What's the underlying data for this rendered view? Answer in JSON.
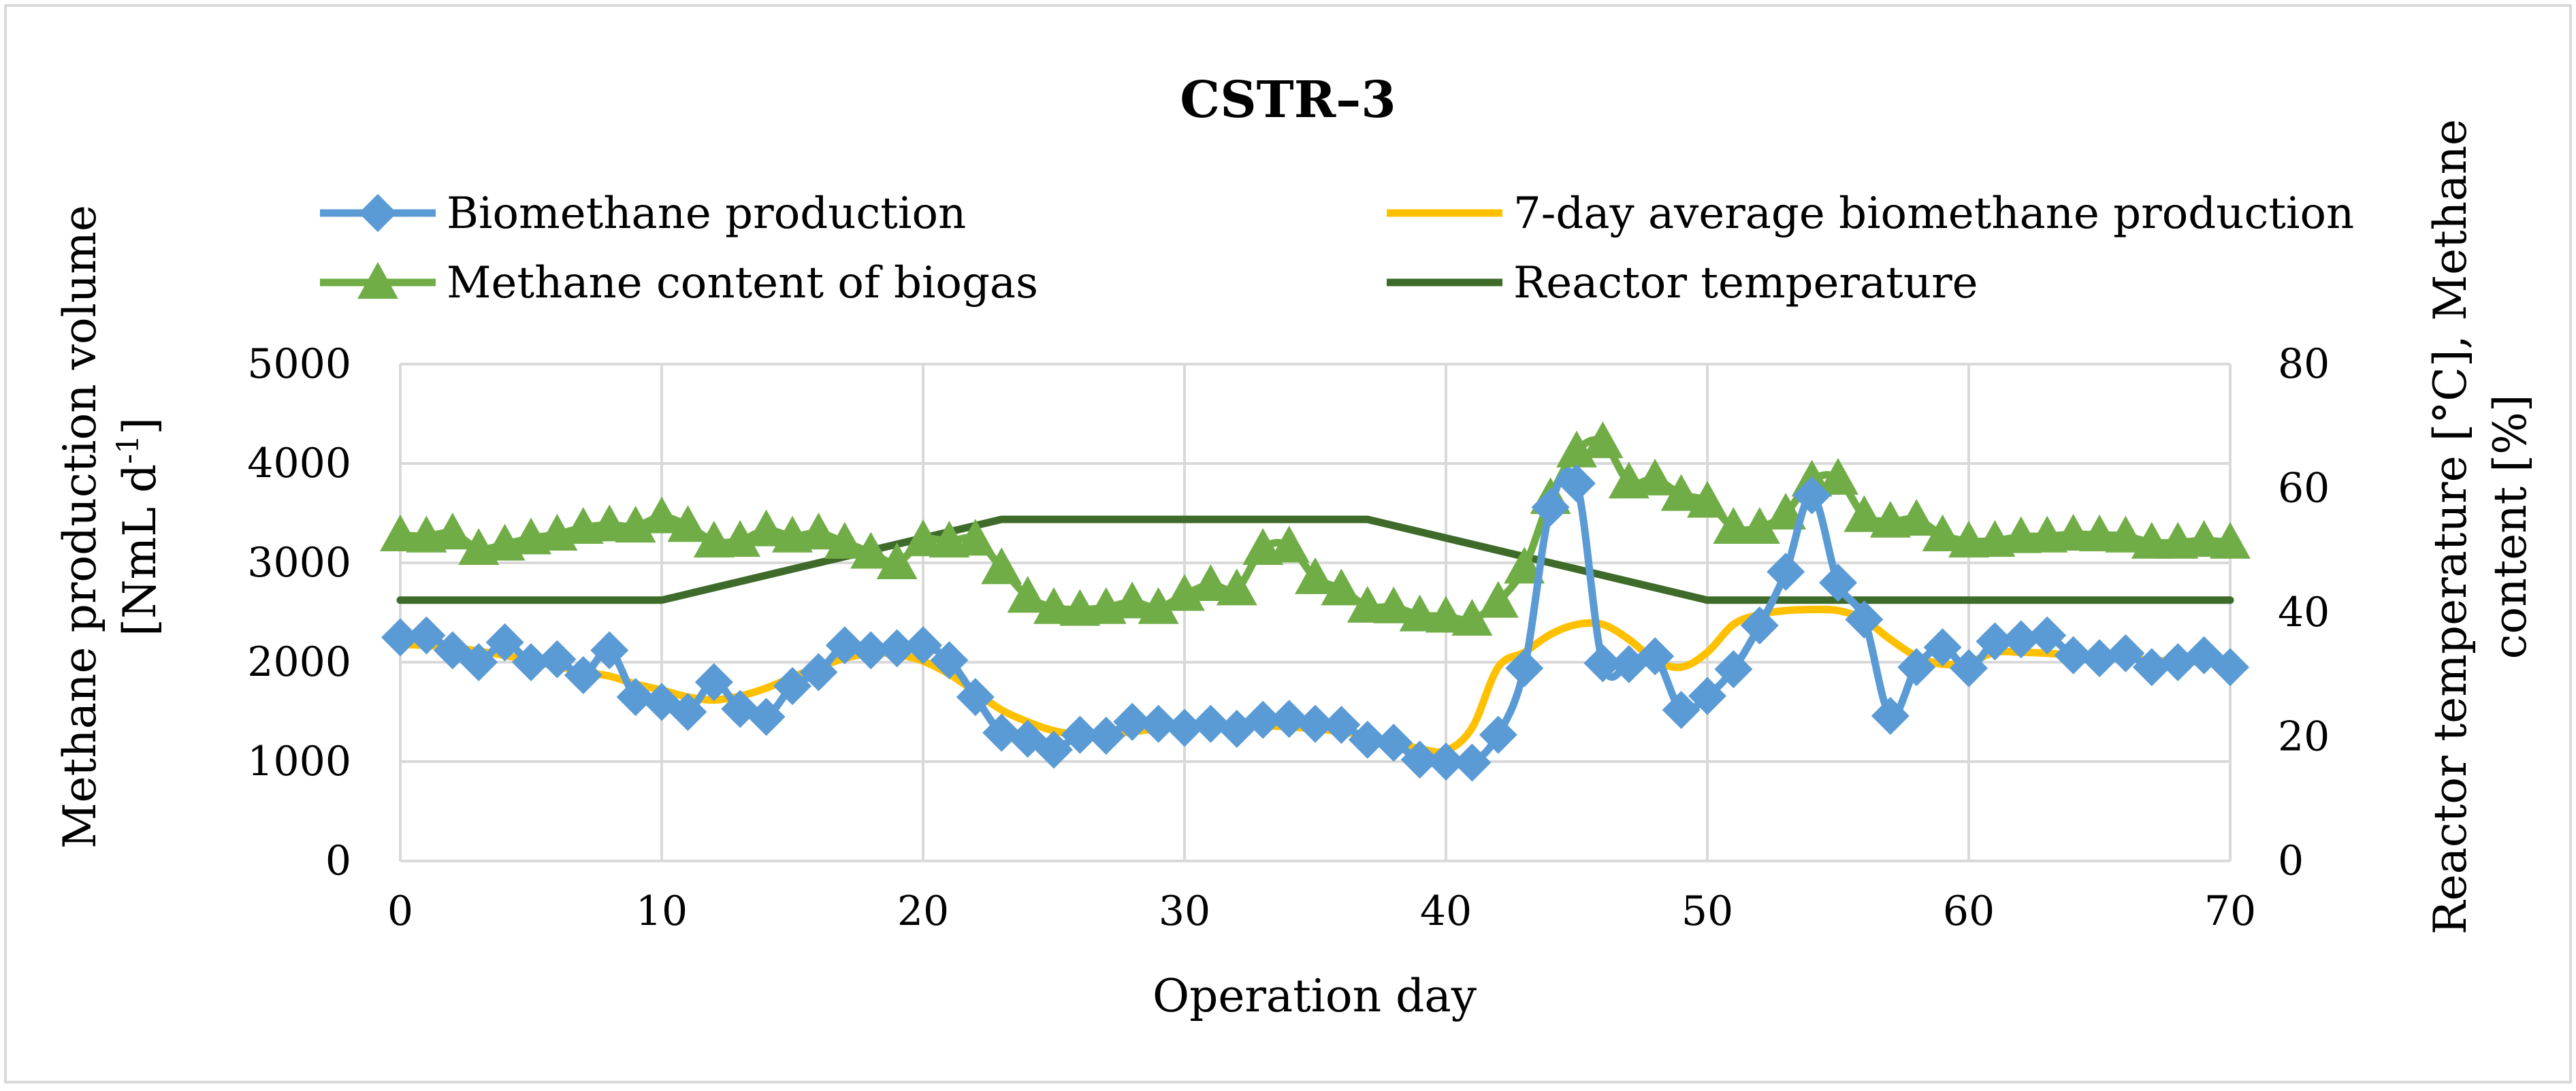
{
  "chart_data": {
    "type": "line",
    "title": "CSTR–3",
    "xlabel": "Operation day",
    "ylabel": "Methane production volume [NmL d-1]",
    "ylabel_lines": [
      "Methane production volume",
      "[NmL d",
      "-1",
      "]"
    ],
    "y2label": "Reactor temperature [°C],  Methane content [%]",
    "y2label_lines": [
      "Reactor temperature [°C],  Methane",
      "content [%]"
    ],
    "xlim": [
      0,
      70
    ],
    "ylim": [
      0,
      5000
    ],
    "y2lim": [
      0,
      80
    ],
    "x_ticks": [
      0,
      10,
      20,
      30,
      40,
      50,
      60,
      70
    ],
    "y_ticks": [
      0,
      1000,
      2000,
      3000,
      4000,
      5000
    ],
    "y2_ticks": [
      0,
      20,
      40,
      60,
      80
    ],
    "grid": true,
    "legend_position": "top",
    "series": [
      {
        "name": "Biomethane production",
        "axis": "left",
        "color": "#5b9bd5",
        "marker": "diamond",
        "x": [
          0,
          1,
          2,
          3,
          4,
          5,
          6,
          7,
          8,
          9,
          10,
          11,
          12,
          13,
          14,
          15,
          16,
          17,
          18,
          19,
          20,
          21,
          22,
          23,
          24,
          25,
          26,
          27,
          28,
          29,
          30,
          31,
          32,
          33,
          34,
          35,
          36,
          37,
          38,
          39,
          40,
          41,
          42,
          43,
          44,
          45,
          46,
          47,
          48,
          49,
          50,
          51,
          52,
          53,
          54,
          55,
          56,
          57,
          58,
          59,
          60,
          61,
          62,
          63,
          64,
          65,
          66,
          67,
          68,
          69,
          70
        ],
        "y": [
          2250,
          2270,
          2120,
          2000,
          2200,
          2000,
          2030,
          1870,
          2120,
          1650,
          1600,
          1500,
          1800,
          1530,
          1450,
          1760,
          1900,
          2170,
          2120,
          2140,
          2170,
          2020,
          1650,
          1290,
          1230,
          1120,
          1270,
          1260,
          1400,
          1380,
          1340,
          1380,
          1330,
          1420,
          1430,
          1380,
          1370,
          1220,
          1190,
          1020,
          1000,
          990,
          1270,
          1940,
          3560,
          3800,
          1990,
          1980,
          2060,
          1520,
          1660,
          1930,
          2370,
          2910,
          3680,
          2800,
          2430,
          1460,
          1950,
          2150,
          1940,
          2210,
          2230,
          2270,
          2070,
          2040,
          2090,
          1950,
          2000,
          2070,
          1950
        ]
      },
      {
        "name": "7-day average biomethane production",
        "axis": "left",
        "color": "#ffc000",
        "marker": "none",
        "x": [
          0,
          1,
          2,
          3,
          4,
          5,
          6,
          7,
          8,
          9,
          10,
          11,
          12,
          13,
          14,
          15,
          16,
          17,
          18,
          19,
          20,
          21,
          22,
          23,
          24,
          25,
          26,
          27,
          28,
          29,
          30,
          31,
          32,
          33,
          34,
          35,
          36,
          37,
          38,
          39,
          40,
          41,
          42,
          43,
          44,
          45,
          46,
          47,
          48,
          49,
          50,
          51,
          52,
          53,
          54,
          55,
          56,
          57,
          58,
          59,
          60,
          61,
          62,
          63,
          64,
          65,
          66,
          67,
          68,
          69,
          70
        ],
        "y": [
          2180,
          2170,
          2150,
          2110,
          2070,
          2010,
          1960,
          1900,
          1860,
          1780,
          1720,
          1650,
          1620,
          1660,
          1740,
          1850,
          1950,
          2040,
          2090,
          2080,
          2010,
          1880,
          1700,
          1520,
          1400,
          1310,
          1270,
          1270,
          1300,
          1330,
          1350,
          1360,
          1360,
          1360,
          1350,
          1330,
          1300,
          1260,
          1200,
          1130,
          1110,
          1340,
          1950,
          2100,
          2280,
          2380,
          2380,
          2230,
          2020,
          1950,
          2100,
          2380,
          2480,
          2520,
          2530,
          2520,
          2430,
          2230,
          2060,
          1980,
          2000,
          2100,
          2100,
          2090,
          2070,
          2050,
          2040,
          2020,
          2010,
          2000,
          1990
        ]
      },
      {
        "name": "Methane content of biogas",
        "axis": "right",
        "color": "#70ad47",
        "marker": "triangle",
        "x": [
          0,
          1,
          2,
          3,
          4,
          5,
          6,
          7,
          8,
          9,
          10,
          11,
          12,
          13,
          14,
          15,
          16,
          17,
          18,
          19,
          20,
          21,
          22,
          23,
          24,
          25,
          26,
          27,
          28,
          29,
          30,
          31,
          32,
          33,
          34,
          35,
          36,
          37,
          38,
          39,
          40,
          41,
          42,
          43,
          44,
          45,
          46,
          47,
          48,
          49,
          50,
          51,
          52,
          53,
          54,
          55,
          56,
          57,
          58,
          59,
          60,
          61,
          62,
          63,
          64,
          65,
          66,
          67,
          68,
          69,
          70
        ],
        "y": [
          52.5,
          52.3,
          52.8,
          50.3,
          51.0,
          52.0,
          52.6,
          53.7,
          54.1,
          53.9,
          55.4,
          54.0,
          51.5,
          51.6,
          53.3,
          52.3,
          52.8,
          51.3,
          49.7,
          48.0,
          51.7,
          51.5,
          51.8,
          47.2,
          42.6,
          40.8,
          40.5,
          40.8,
          41.7,
          40.8,
          42.9,
          44.5,
          43.8,
          50.3,
          50.7,
          45.6,
          43.8,
          41.0,
          40.9,
          39.6,
          39.4,
          38.9,
          41.8,
          47.3,
          58.5,
          66.0,
          67.5,
          61.0,
          61.5,
          59.0,
          57.9,
          53.7,
          53.7,
          56.0,
          61.3,
          61.6,
          55.6,
          54.7,
          55.0,
          52.5,
          51.5,
          51.6,
          52.2,
          52.3,
          52.6,
          52.5,
          52.3,
          51.3,
          51.3,
          51.6,
          51.3
        ]
      },
      {
        "name": "Reactor temperature",
        "axis": "right",
        "color": "#3e6b2a",
        "marker": "none",
        "x": [
          0,
          10,
          23,
          37,
          50,
          70
        ],
        "y": [
          42,
          42,
          55,
          55,
          42,
          42
        ]
      }
    ]
  }
}
